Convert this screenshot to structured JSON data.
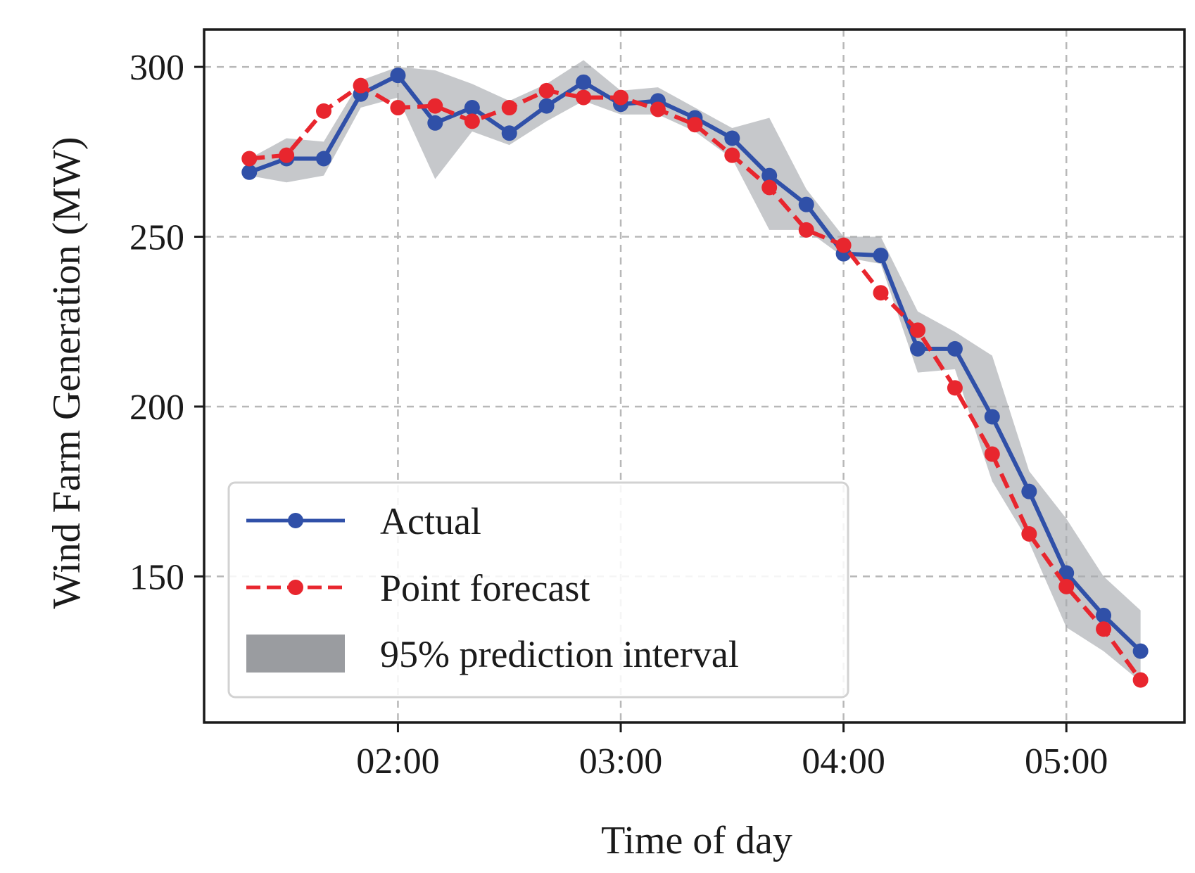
{
  "chart_data": {
    "type": "line",
    "xlabel": "Time of day",
    "ylabel": "Wind Farm Generation (MW)",
    "x_unit": "hours",
    "xlim": [
      1.13,
      5.53
    ],
    "ylim": [
      107,
      311
    ],
    "x_ticks": [
      {
        "value": 2,
        "label": "02:00"
      },
      {
        "value": 3,
        "label": "03:00"
      },
      {
        "value": 4,
        "label": "04:00"
      },
      {
        "value": 5,
        "label": "05:00"
      }
    ],
    "y_ticks": [
      {
        "value": 150,
        "label": "150"
      },
      {
        "value": 200,
        "label": "200"
      },
      {
        "value": 250,
        "label": "250"
      },
      {
        "value": 300,
        "label": "300"
      }
    ],
    "grid": true,
    "legend_position": "lower-left",
    "x": [
      1.333,
      1.5,
      1.667,
      1.833,
      2.0,
      2.167,
      2.333,
      2.5,
      2.667,
      2.833,
      3.0,
      3.167,
      3.333,
      3.5,
      3.667,
      3.833,
      4.0,
      4.167,
      4.333,
      4.5,
      4.667,
      4.833,
      5.0,
      5.167,
      5.333
    ],
    "series": [
      {
        "name": "Actual",
        "style": "solid",
        "color": "#3050a8",
        "values": [
          269,
          273,
          273,
          292,
          297.5,
          283.5,
          288,
          280.5,
          288.5,
          295.5,
          289,
          290,
          285,
          279,
          268,
          259.5,
          245,
          244.5,
          217,
          217,
          197,
          175,
          151,
          138.5,
          128
        ]
      },
      {
        "name": "Point forecast",
        "style": "dashed",
        "color": "#e8262e",
        "values": [
          273,
          274,
          287,
          294.5,
          288,
          288.5,
          284,
          288,
          293,
          291,
          291,
          287.5,
          283,
          274,
          264.5,
          252,
          247.5,
          233.5,
          222.5,
          205.5,
          186,
          162.5,
          147,
          134.5,
          119.5
        ]
      }
    ],
    "interval": {
      "name": "95% prediction interval",
      "color": "#a8abaf",
      "lower": [
        268,
        266,
        268,
        288,
        291,
        267,
        281,
        277,
        284,
        290,
        286,
        286,
        281,
        273,
        252,
        252,
        244,
        242,
        210,
        211,
        178,
        160,
        135,
        128,
        119
      ],
      "upper": [
        273,
        279,
        278,
        296,
        300,
        299,
        295,
        290,
        295,
        302,
        293,
        294,
        288,
        282,
        285,
        264,
        250,
        250,
        228,
        222,
        215,
        181,
        167,
        150,
        140
      ]
    }
  }
}
